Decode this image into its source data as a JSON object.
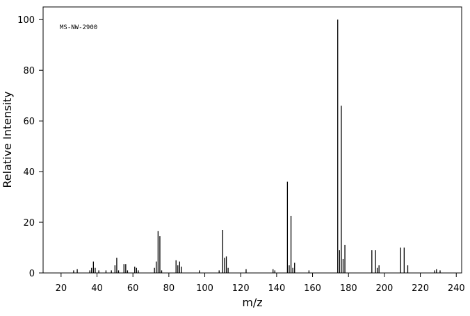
{
  "chart_data": {
    "type": "bar",
    "annotation": "MS-NW-2900",
    "xlabel": "m/z",
    "ylabel": "Relative Intensity",
    "x": [
      27,
      29,
      36,
      37,
      38,
      39,
      41,
      45,
      48,
      50,
      51,
      52,
      55,
      56,
      57,
      61,
      62,
      63,
      72,
      73,
      74,
      75,
      76,
      84,
      85,
      86,
      87,
      97,
      108,
      110,
      111,
      112,
      113,
      123,
      138,
      139,
      146,
      147,
      148,
      149,
      150,
      158,
      174,
      175,
      176,
      177,
      178,
      193,
      195,
      196,
      197,
      209,
      211,
      213,
      228,
      229,
      231
    ],
    "values": [
      1,
      1.5,
      1,
      2,
      4.5,
      2,
      1,
      1,
      1,
      3,
      6,
      1,
      3.5,
      3.5,
      1,
      2.5,
      2,
      1,
      2,
      4.5,
      16.5,
      14.5,
      1,
      5,
      3,
      4.5,
      2.5,
      1,
      1,
      17,
      6,
      6.5,
      2,
      1.5,
      1.5,
      1,
      36,
      3,
      22.5,
      2,
      4,
      1,
      100,
      9,
      66,
      5.5,
      11,
      9,
      9,
      2,
      3,
      10,
      10,
      3,
      1,
      1.5,
      1
    ],
    "color": "#000000",
    "xlim": [
      10,
      243
    ],
    "ylim": [
      0,
      105
    ],
    "xticks": [
      20,
      40,
      60,
      80,
      100,
      120,
      140,
      160,
      180,
      200,
      220,
      240
    ],
    "yticks": [
      0,
      20,
      40,
      60,
      80,
      100
    ]
  }
}
